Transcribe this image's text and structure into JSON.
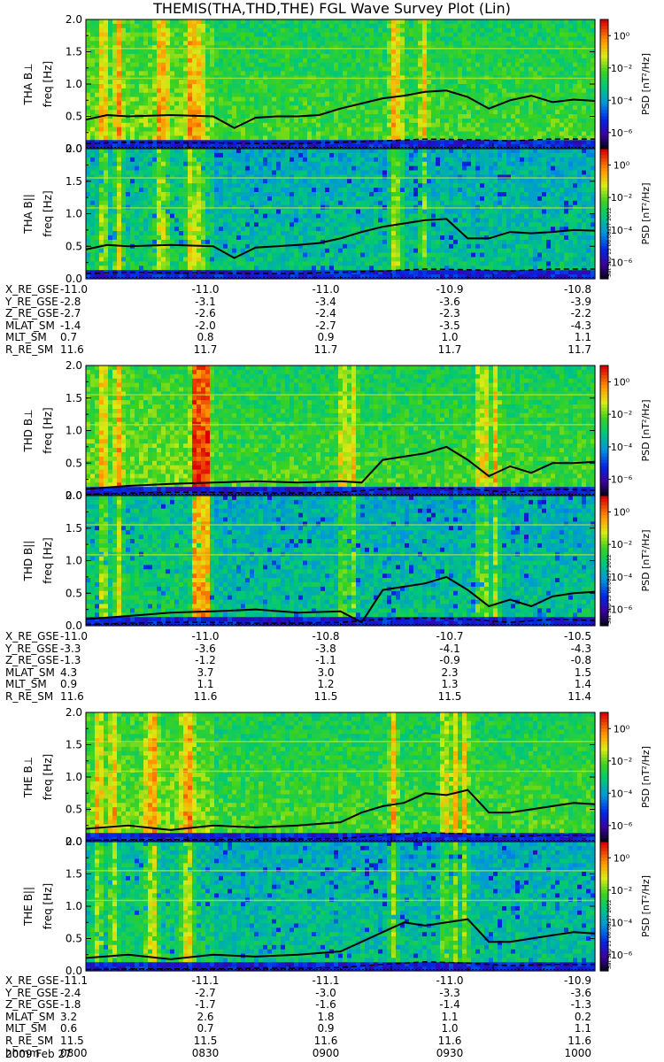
{
  "title": "THEMIS(THA,THD,THE) FGL Wave Survey Plot (Lin)",
  "stamp_text": "Sat Sep 15 06:08:37 2012",
  "date_text": "2009 Feb 27",
  "colors": {
    "line": "#000000",
    "spectro_low": "#0000a0",
    "spectro_mid": "#00c000",
    "spectro_high": "#ff0000",
    "band_yellow": "#c8e628"
  },
  "colorbar": {
    "label": "PSD [nT²/Hz]",
    "ticks": [
      "10⁰",
      "10⁻²",
      "10⁻⁴",
      "10⁻⁶"
    ],
    "log_range": [
      -7,
      1
    ]
  },
  "chart_data": [
    {
      "type": "heatmap",
      "probe": "THA",
      "ylabel": "THA B⊥",
      "ylabel_unit": "freq [Hz]",
      "ylim": [
        0,
        2
      ],
      "yticks": [
        "0.0",
        "0.5",
        "1.0",
        "1.5",
        "2.0"
      ],
      "xlim": [
        0,
        120
      ],
      "solid_line": {
        "x": [
          0,
          5,
          10,
          20,
          30,
          35,
          40,
          45,
          50,
          55,
          60,
          65,
          70,
          75,
          80,
          85,
          90,
          95,
          100,
          105,
          110,
          115,
          120
        ],
        "y": [
          0.45,
          0.52,
          0.5,
          0.52,
          0.5,
          0.32,
          0.48,
          0.5,
          0.5,
          0.52,
          0.62,
          0.7,
          0.78,
          0.82,
          0.88,
          0.9,
          0.8,
          0.62,
          0.75,
          0.82,
          0.72,
          0.76,
          0.74
        ]
      },
      "dashed_line": {
        "x": [
          0,
          10,
          20,
          30,
          40,
          50,
          60,
          70,
          80,
          90,
          100,
          110,
          120
        ],
        "y": [
          0.08,
          0.1,
          0.09,
          0.09,
          0.08,
          0.08,
          0.1,
          0.12,
          0.15,
          0.14,
          0.12,
          0.15,
          0.15
        ]
      }
    },
    {
      "type": "heatmap",
      "probe": "THA",
      "ylabel": "THA B||",
      "ylabel_unit": "freq [Hz]",
      "ylim": [
        0,
        2
      ],
      "yticks": [
        "0.0",
        "0.5",
        "1.0",
        "1.5",
        "2.0"
      ],
      "xlim": [
        0,
        120
      ],
      "solid_line": {
        "x": [
          0,
          5,
          10,
          20,
          30,
          35,
          40,
          45,
          50,
          55,
          60,
          65,
          70,
          75,
          80,
          85,
          90,
          95,
          100,
          105,
          110,
          115,
          120
        ],
        "y": [
          0.45,
          0.52,
          0.5,
          0.52,
          0.5,
          0.32,
          0.48,
          0.5,
          0.52,
          0.55,
          0.62,
          0.72,
          0.8,
          0.85,
          0.9,
          0.92,
          0.62,
          0.62,
          0.72,
          0.7,
          0.72,
          0.75,
          0.74
        ]
      },
      "dashed_line": {
        "x": [
          0,
          10,
          20,
          30,
          40,
          50,
          60,
          70,
          80,
          90,
          100,
          110,
          120
        ],
        "y": [
          0.08,
          0.1,
          0.09,
          0.09,
          0.08,
          0.08,
          0.1,
          0.12,
          0.15,
          0.14,
          0.12,
          0.15,
          0.15
        ]
      }
    },
    {
      "type": "heatmap",
      "probe": "THD",
      "ylabel": "THD B⊥",
      "ylabel_unit": "freq [Hz]",
      "ylim": [
        0,
        2
      ],
      "yticks": [
        "0.0",
        "0.5",
        "1.0",
        "1.5",
        "2.0"
      ],
      "xlim": [
        0,
        120
      ],
      "solid_line": {
        "x": [
          0,
          10,
          20,
          30,
          40,
          50,
          60,
          65,
          70,
          75,
          80,
          85,
          90,
          95,
          100,
          105,
          110,
          115,
          120
        ],
        "y": [
          0.1,
          0.15,
          0.18,
          0.2,
          0.22,
          0.2,
          0.22,
          0.2,
          0.55,
          0.6,
          0.65,
          0.75,
          0.55,
          0.3,
          0.45,
          0.35,
          0.5,
          0.5,
          0.52
        ]
      },
      "dashed_line": {
        "x": [
          0,
          10,
          20,
          30,
          40,
          50,
          60,
          70,
          80,
          90,
          100,
          110,
          120
        ],
        "y": [
          0.02,
          0.04,
          0.05,
          0.05,
          0.04,
          0.04,
          0.05,
          0.1,
          0.12,
          0.1,
          0.05,
          0.1,
          0.08
        ]
      }
    },
    {
      "type": "heatmap",
      "probe": "THD",
      "ylabel": "THD B||",
      "ylabel_unit": "freq [Hz]",
      "ylim": [
        0,
        2
      ],
      "yticks": [
        "0.0",
        "0.5",
        "1.0",
        "1.5",
        "2.0"
      ],
      "xlim": [
        0,
        120
      ],
      "solid_line": {
        "x": [
          0,
          10,
          20,
          30,
          40,
          50,
          60,
          65,
          70,
          75,
          80,
          85,
          90,
          95,
          100,
          105,
          110,
          115,
          120
        ],
        "y": [
          0.1,
          0.15,
          0.2,
          0.22,
          0.25,
          0.2,
          0.22,
          0.05,
          0.55,
          0.6,
          0.65,
          0.75,
          0.55,
          0.3,
          0.4,
          0.3,
          0.45,
          0.5,
          0.52
        ]
      },
      "dashed_line": {
        "x": [
          0,
          10,
          20,
          30,
          40,
          50,
          60,
          70,
          80,
          90,
          100,
          110,
          120
        ],
        "y": [
          0.02,
          0.04,
          0.05,
          0.05,
          0.04,
          0.04,
          0.05,
          0.1,
          0.12,
          0.1,
          0.05,
          0.1,
          0.08
        ]
      }
    },
    {
      "type": "heatmap",
      "probe": "THE",
      "ylabel": "THE B⊥",
      "ylabel_unit": "freq [Hz]",
      "ylim": [
        0,
        2
      ],
      "yticks": [
        "0.0",
        "0.5",
        "1.0",
        "1.5",
        "2.0"
      ],
      "xlim": [
        0,
        120
      ],
      "solid_line": {
        "x": [
          0,
          10,
          20,
          30,
          40,
          50,
          60,
          65,
          70,
          75,
          80,
          85,
          90,
          95,
          100,
          105,
          110,
          115,
          120
        ],
        "y": [
          0.2,
          0.25,
          0.18,
          0.25,
          0.22,
          0.25,
          0.3,
          0.45,
          0.55,
          0.6,
          0.75,
          0.72,
          0.8,
          0.45,
          0.45,
          0.5,
          0.55,
          0.6,
          0.58
        ]
      },
      "dashed_line": {
        "x": [
          0,
          10,
          20,
          30,
          40,
          50,
          60,
          70,
          80,
          90,
          100,
          110,
          120
        ],
        "y": [
          0.02,
          0.03,
          0.03,
          0.03,
          0.04,
          0.04,
          0.05,
          0.1,
          0.14,
          0.12,
          0.08,
          0.1,
          0.1
        ]
      }
    },
    {
      "type": "heatmap",
      "probe": "THE",
      "ylabel": "THE B||",
      "ylabel_unit": "freq [Hz]",
      "ylim": [
        0,
        2
      ],
      "yticks": [
        "0.0",
        "0.5",
        "1.0",
        "1.5",
        "2.0"
      ],
      "xlim": [
        0,
        120
      ],
      "solid_line": {
        "x": [
          0,
          10,
          20,
          30,
          40,
          50,
          60,
          65,
          70,
          75,
          80,
          85,
          90,
          95,
          100,
          105,
          110,
          115,
          120
        ],
        "y": [
          0.2,
          0.25,
          0.18,
          0.25,
          0.22,
          0.25,
          0.3,
          0.45,
          0.6,
          0.75,
          0.7,
          0.75,
          0.8,
          0.45,
          0.45,
          0.5,
          0.55,
          0.6,
          0.58
        ]
      },
      "dashed_line": {
        "x": [
          0,
          10,
          20,
          30,
          40,
          50,
          60,
          70,
          80,
          90,
          100,
          110,
          120
        ],
        "y": [
          0.02,
          0.03,
          0.03,
          0.03,
          0.04,
          0.04,
          0.05,
          0.1,
          0.14,
          0.12,
          0.08,
          0.1,
          0.1
        ]
      }
    }
  ],
  "ephemeris": [
    {
      "probe": "THA",
      "rows": [
        {
          "name": "X_RE_GSE",
          "values": [
            "-11.0",
            "-11.0",
            "-11.0",
            "-10.9",
            "-10.8"
          ]
        },
        {
          "name": "Y_RE_GSE",
          "values": [
            "-2.8",
            "-3.1",
            "-3.4",
            "-3.6",
            "-3.9"
          ]
        },
        {
          "name": "Z_RE_GSE",
          "values": [
            "-2.7",
            "-2.6",
            "-2.4",
            "-2.3",
            "-2.2"
          ]
        },
        {
          "name": "MLAT_SM",
          "values": [
            "-1.4",
            "-2.0",
            "-2.7",
            "-3.5",
            "-4.3"
          ]
        },
        {
          "name": "MLT_SM",
          "values": [
            "0.7",
            "0.8",
            "0.9",
            "1.0",
            "1.1"
          ]
        },
        {
          "name": "R_RE_SM",
          "values": [
            "11.6",
            "11.7",
            "11.7",
            "11.7",
            "11.7"
          ]
        }
      ]
    },
    {
      "probe": "THD",
      "rows": [
        {
          "name": "X_RE_GSE",
          "values": [
            "-11.0",
            "-11.0",
            "-10.8",
            "-10.7",
            "-10.5"
          ]
        },
        {
          "name": "Y_RE_GSE",
          "values": [
            "-3.3",
            "-3.6",
            "-3.8",
            "-4.1",
            "-4.3"
          ]
        },
        {
          "name": "Z_RE_GSE",
          "values": [
            "-1.3",
            "-1.2",
            "-1.1",
            "-0.9",
            "-0.8"
          ]
        },
        {
          "name": "MLAT_SM",
          "values": [
            "4.3",
            "3.7",
            "3.0",
            "2.3",
            "1.5"
          ]
        },
        {
          "name": "MLT_SM",
          "values": [
            "0.9",
            "1.1",
            "1.2",
            "1.3",
            "1.4"
          ]
        },
        {
          "name": "R_RE_SM",
          "values": [
            "11.6",
            "11.6",
            "11.5",
            "11.5",
            "11.4"
          ]
        }
      ]
    },
    {
      "probe": "THE",
      "rows": [
        {
          "name": "X_RE_GSE",
          "values": [
            "-11.1",
            "-11.1",
            "-11.1",
            "-11.0",
            "-10.9"
          ]
        },
        {
          "name": "Y_RE_GSE",
          "values": [
            "-2.4",
            "-2.7",
            "-3.0",
            "-3.3",
            "-3.6"
          ]
        },
        {
          "name": "Z_RE_GSE",
          "values": [
            "-1.8",
            "-1.7",
            "-1.6",
            "-1.4",
            "-1.3"
          ]
        },
        {
          "name": "MLAT_SM",
          "values": [
            "3.2",
            "2.6",
            "1.8",
            "1.1",
            "0.2"
          ]
        },
        {
          "name": "MLT_SM",
          "values": [
            "0.6",
            "0.7",
            "0.9",
            "1.0",
            "1.1"
          ]
        },
        {
          "name": "R_RE_SM",
          "values": [
            "11.5",
            "11.5",
            "11.6",
            "11.6",
            "11.6"
          ]
        },
        {
          "name": "hhmm",
          "values": [
            "0800",
            "0830",
            "0900",
            "0930",
            "1000"
          ]
        }
      ]
    }
  ]
}
